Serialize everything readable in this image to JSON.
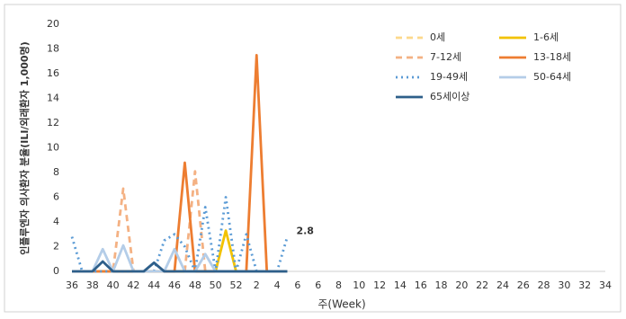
{
  "chart_data": {
    "type": "line",
    "y_label": "인플루엔자 의사환자 분율(ILI/외래환자 1,000명)",
    "x_label": "주(Week)",
    "categories": [
      "36",
      null,
      "38",
      null,
      "40",
      null,
      "42",
      null,
      "44",
      null,
      "46",
      null,
      "48",
      null,
      "50",
      null,
      "52",
      null,
      "2",
      null,
      "4",
      null,
      "6",
      null,
      "6",
      null,
      "8",
      null,
      "10",
      null,
      "12",
      null,
      "14",
      null,
      "16",
      null,
      "18",
      null,
      "20",
      null,
      "22",
      null,
      "24",
      null,
      "26",
      null,
      "28",
      null,
      "30",
      null,
      "32",
      null,
      "34"
    ],
    "ylim": [
      0,
      20
    ],
    "yticks": [
      0,
      2,
      4,
      6,
      8,
      10,
      12,
      14,
      16,
      18,
      20
    ],
    "series": [
      {
        "name": "0세",
        "color": "#fcd98c",
        "dash": "dashed",
        "values": [
          0,
          0,
          0,
          0,
          0,
          0,
          0,
          0,
          0,
          0,
          0,
          0,
          0,
          0,
          0,
          0,
          0,
          0,
          0,
          0,
          0,
          0,
          null,
          null,
          null,
          null,
          null,
          null,
          null,
          null,
          null,
          null,
          null,
          null,
          null,
          null,
          null,
          null,
          null,
          null,
          null,
          null,
          null,
          null,
          null,
          null,
          null,
          null,
          null,
          null,
          null,
          null,
          null
        ]
      },
      {
        "name": "1-6세",
        "color": "#f2c200",
        "dash": "solid",
        "values": [
          0,
          0,
          0,
          0,
          0,
          0,
          0,
          0,
          0,
          0,
          0,
          0,
          0,
          0,
          0,
          3.3,
          0,
          0,
          0,
          0,
          0,
          0,
          null,
          null,
          null,
          null,
          null,
          null,
          null,
          null,
          null,
          null,
          null,
          null,
          null,
          null,
          null,
          null,
          null,
          null,
          null,
          null,
          null,
          null,
          null,
          null,
          null,
          null,
          null,
          null,
          null,
          null,
          null
        ]
      },
      {
        "name": "7-12세",
        "color": "#f4b183",
        "dash": "dashed",
        "values": [
          0,
          0,
          0,
          0,
          0,
          6.7,
          0,
          0,
          0,
          0,
          0,
          0,
          8.1,
          0,
          0,
          0,
          0,
          0,
          0,
          0,
          0,
          0,
          null,
          null,
          null,
          null,
          null,
          null,
          null,
          null,
          null,
          null,
          null,
          null,
          null,
          null,
          null,
          null,
          null,
          null,
          null,
          null,
          null,
          null,
          null,
          null,
          null,
          null,
          null,
          null,
          null,
          null,
          null
        ]
      },
      {
        "name": "13-18세",
        "color": "#ed7d31",
        "dash": "solid",
        "values": [
          0,
          0,
          0,
          0,
          0,
          0,
          0,
          0,
          0,
          0,
          0,
          8.8,
          0,
          0,
          0,
          0,
          0,
          0,
          17.5,
          0,
          0,
          0,
          null,
          null,
          null,
          null,
          null,
          null,
          null,
          null,
          null,
          null,
          null,
          null,
          null,
          null,
          null,
          null,
          null,
          null,
          null,
          null,
          null,
          null,
          null,
          null,
          null,
          null,
          null,
          null,
          null,
          null,
          null
        ]
      },
      {
        "name": "19-49세",
        "color": "#5b9bd5",
        "dash": "dotted",
        "values": [
          2.8,
          0,
          0,
          0,
          0,
          0,
          0,
          0,
          0,
          2.5,
          3,
          2,
          0,
          5.2,
          0,
          6,
          0,
          3,
          0,
          0,
          0,
          2.8,
          null,
          null,
          null,
          null,
          null,
          null,
          null,
          null,
          null,
          null,
          null,
          null,
          null,
          null,
          null,
          null,
          null,
          null,
          null,
          null,
          null,
          null,
          null,
          null,
          null,
          null,
          null,
          null,
          null,
          null,
          null
        ]
      },
      {
        "name": "50-64세",
        "color": "#b4cde8",
        "dash": "solid",
        "values": [
          0,
          0,
          0,
          1.8,
          0,
          2.1,
          0,
          0,
          0,
          0,
          1.8,
          0,
          0,
          1.4,
          0,
          0,
          0,
          0,
          0,
          0,
          0,
          0,
          null,
          null,
          null,
          null,
          null,
          null,
          null,
          null,
          null,
          null,
          null,
          null,
          null,
          null,
          null,
          null,
          null,
          null,
          null,
          null,
          null,
          null,
          null,
          null,
          null,
          null,
          null,
          null,
          null,
          null,
          null
        ]
      },
      {
        "name": "65세이상",
        "color": "#2e5f8a",
        "dash": "solid",
        "values": [
          0,
          0,
          0,
          0.8,
          0,
          0,
          0,
          0,
          0.7,
          0,
          0,
          0,
          0,
          0,
          0,
          0,
          0,
          0,
          0,
          0,
          0,
          0,
          null,
          null,
          null,
          null,
          null,
          null,
          null,
          null,
          null,
          null,
          null,
          null,
          null,
          null,
          null,
          null,
          null,
          null,
          null,
          null,
          null,
          null,
          null,
          null,
          null,
          null,
          null,
          null,
          null,
          null,
          null
        ]
      }
    ],
    "label_series": 4,
    "label_index": 21
  }
}
